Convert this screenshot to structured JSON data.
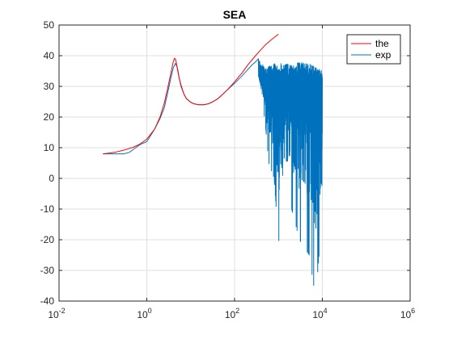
{
  "chart_data": {
    "type": "line",
    "title": "SEA",
    "xlabel": "",
    "ylabel": "",
    "xscale": "log",
    "xlim": [
      0.01,
      1000000
    ],
    "ylim": [
      -40,
      50
    ],
    "grid": true,
    "legend_position": "top-right",
    "x_ticks": [
      {
        "value": 0.01,
        "base": "10",
        "exp": "-2"
      },
      {
        "value": 1,
        "base": "10",
        "exp": "0"
      },
      {
        "value": 100,
        "base": "10",
        "exp": "2"
      },
      {
        "value": 10000,
        "base": "10",
        "exp": "4"
      },
      {
        "value": 1000000,
        "base": "10",
        "exp": "6"
      }
    ],
    "y_ticks": [
      {
        "value": 50,
        "label": "50"
      },
      {
        "value": 40,
        "label": "40"
      },
      {
        "value": 30,
        "label": "30"
      },
      {
        "value": 20,
        "label": "20"
      },
      {
        "value": 10,
        "label": "10"
      },
      {
        "value": 0,
        "label": "0"
      },
      {
        "value": -10,
        "label": "-10"
      },
      {
        "value": -20,
        "label": "-20"
      },
      {
        "value": -30,
        "label": "-30"
      },
      {
        "value": -40,
        "label": "-40"
      }
    ],
    "series": [
      {
        "name": "the",
        "color": "#ff0000",
        "x": [
          0.1,
          0.15,
          0.2,
          0.3,
          0.5,
          0.7,
          1,
          1.5,
          2,
          2.5,
          3,
          3.5,
          4,
          4.3,
          4.6,
          5,
          5.5,
          6,
          7,
          8,
          10,
          12,
          15,
          20,
          25,
          30,
          40,
          50,
          70,
          100,
          150,
          200,
          300,
          400,
          500,
          700,
          1000
        ],
        "y": [
          8,
          8.3,
          8.6,
          9.2,
          10.2,
          11.2,
          12.8,
          16,
          20,
          24.5,
          29.5,
          34,
          38,
          39.2,
          38.5,
          35.5,
          32.5,
          30.5,
          27.5,
          26,
          24.8,
          24.3,
          24,
          24,
          24.3,
          24.8,
          25.8,
          27,
          29,
          31.5,
          34.5,
          37,
          40,
          42,
          43.5,
          45.3,
          47
        ]
      },
      {
        "name": "exp",
        "color": "#0072bd",
        "x": [
          0.1,
          0.15,
          0.2,
          0.3,
          0.4,
          0.5,
          0.7,
          1,
          1.5,
          2,
          2.5,
          3,
          3.5,
          4,
          4.5,
          5,
          5.5,
          6,
          7,
          8,
          10,
          12,
          15,
          20,
          25,
          30,
          40,
          50,
          70,
          100,
          150,
          200,
          250,
          300,
          350
        ],
        "y": [
          8,
          8,
          8,
          8,
          8.5,
          9.5,
          11,
          12,
          16,
          19.5,
          23,
          28,
          32.5,
          36,
          37.5,
          36,
          32.5,
          30,
          27.5,
          26,
          24.8,
          24.3,
          24,
          24,
          24.3,
          24.8,
          25.8,
          27,
          29,
          31,
          33.5,
          35.5,
          37,
          38,
          39
        ]
      }
    ],
    "noise_region": {
      "series": "exp",
      "x_start": 350,
      "x_end": 10000,
      "upper_envelope": [
        [
          350,
          39
        ],
        [
          500,
          36
        ],
        [
          700,
          37
        ],
        [
          1000,
          38
        ],
        [
          2000,
          37
        ],
        [
          3000,
          38
        ],
        [
          5000,
          37.5
        ],
        [
          8000,
          36
        ],
        [
          10000,
          35
        ]
      ],
      "lower_envelope": [
        [
          350,
          33
        ],
        [
          500,
          18
        ],
        [
          600,
          5
        ],
        [
          800,
          0
        ],
        [
          1000,
          -21
        ],
        [
          1500,
          -5
        ],
        [
          2000,
          -10
        ],
        [
          3000,
          -20
        ],
        [
          5000,
          -25
        ],
        [
          7000,
          -39
        ],
        [
          9000,
          -20
        ],
        [
          10000,
          -25
        ]
      ],
      "baseline": [
        [
          350,
          34
        ],
        [
          1000,
          30
        ],
        [
          3000,
          31
        ],
        [
          10000,
          30
        ]
      ]
    }
  }
}
